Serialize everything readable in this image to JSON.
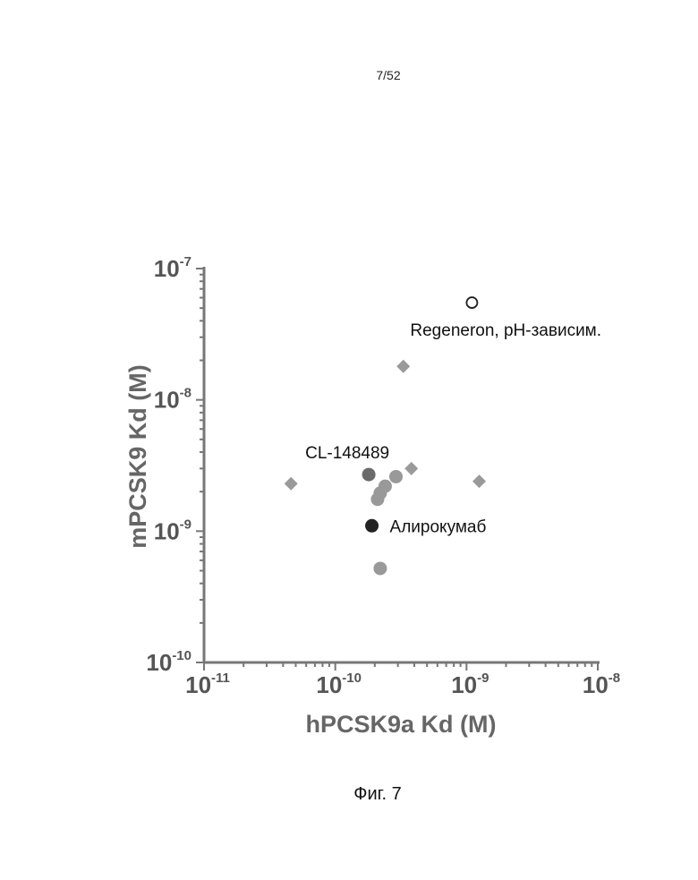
{
  "page_number": "7/52",
  "caption": "Фиг. 7",
  "chart_data": {
    "type": "scatter",
    "xlabel": "hPCSK9a Kd (M)",
    "ylabel": "mPCSK9 Kd (M)",
    "xscale": "log",
    "yscale": "log",
    "xlim": [
      1e-11,
      1e-08
    ],
    "ylim": [
      1e-10,
      1e-07
    ],
    "grid": false,
    "x_tick_labels": [
      {
        "base": "10",
        "exp": "-11"
      },
      {
        "base": "10",
        "exp": "-10"
      },
      {
        "base": "10",
        "exp": "-9"
      },
      {
        "base": "10",
        "exp": "-8"
      }
    ],
    "y_tick_labels": [
      {
        "base": "10",
        "exp": "-10"
      },
      {
        "base": "10",
        "exp": "-9"
      },
      {
        "base": "10",
        "exp": "-8"
      },
      {
        "base": "10",
        "exp": "-7"
      }
    ],
    "points": [
      {
        "x": 4.6e-11,
        "y": 2.3e-09,
        "marker": "diamond",
        "color": "#9a9a9a"
      },
      {
        "x": 3.3e-10,
        "y": 1.8e-08,
        "marker": "diamond",
        "color": "#9a9a9a"
      },
      {
        "x": 3.8e-10,
        "y": 3e-09,
        "marker": "diamond",
        "color": "#9a9a9a"
      },
      {
        "x": 1.25e-09,
        "y": 2.4e-09,
        "marker": "diamond",
        "color": "#9a9a9a"
      },
      {
        "x": 1.8e-10,
        "y": 2.7e-09,
        "marker": "circle",
        "color": "#6a6a6a"
      },
      {
        "x": 2.9e-10,
        "y": 2.6e-09,
        "marker": "circle",
        "color": "#999999"
      },
      {
        "x": 2.4e-10,
        "y": 2.2e-09,
        "marker": "circle",
        "color": "#999999"
      },
      {
        "x": 2.2e-10,
        "y": 1.95e-09,
        "marker": "circle",
        "color": "#999999"
      },
      {
        "x": 2.1e-10,
        "y": 1.75e-09,
        "marker": "circle",
        "color": "#999999"
      },
      {
        "x": 2.2e-10,
        "y": 5.2e-10,
        "marker": "circle",
        "color": "#999999"
      },
      {
        "x": 1.9e-10,
        "y": 1.1e-09,
        "marker": "circle",
        "color": "#222222"
      },
      {
        "x": 1.1e-09,
        "y": 5.5e-08,
        "marker": "open-circle",
        "color": "#222222"
      }
    ],
    "annotations": [
      {
        "text": "Regeneron, pH-зависим.",
        "x": 1.1e-09,
        "y": 5.5e-08,
        "color": "#111111"
      },
      {
        "text": "CL-148489",
        "x": 1.8e-10,
        "y": 2.7e-09,
        "color": "#555555"
      },
      {
        "text": "Алирокумаб",
        "x": 1.9e-10,
        "y": 1.1e-09,
        "color": "#111111"
      }
    ]
  }
}
